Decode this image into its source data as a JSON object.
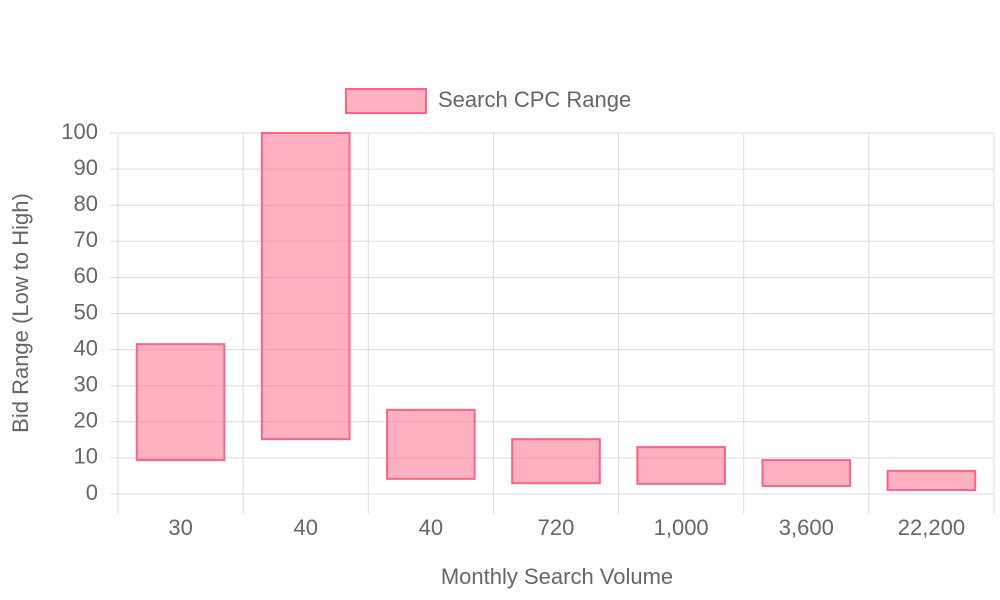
{
  "chart_data": {
    "type": "floating-bar",
    "x_label": "Monthly Search Volume",
    "y_label": "Bid Range (Low to High)",
    "categories": [
      "30",
      "40",
      "40",
      "720",
      "1,000",
      "3,600",
      "22,200"
    ],
    "series": [
      {
        "name": "Search CPC Range",
        "color": "#ff6384",
        "values": [
          [
            9.4,
            41.5
          ],
          [
            15.2,
            100
          ],
          [
            4.2,
            23.3
          ],
          [
            3.0,
            15.2
          ],
          [
            2.8,
            13.0
          ],
          [
            2.2,
            9.4
          ],
          [
            1.1,
            6.4
          ]
        ]
      }
    ],
    "ylim": [
      0,
      100
    ],
    "yticks": [
      0,
      10,
      20,
      30,
      40,
      50,
      60,
      70,
      80,
      90,
      100
    ],
    "grid": true,
    "legend": "top"
  }
}
